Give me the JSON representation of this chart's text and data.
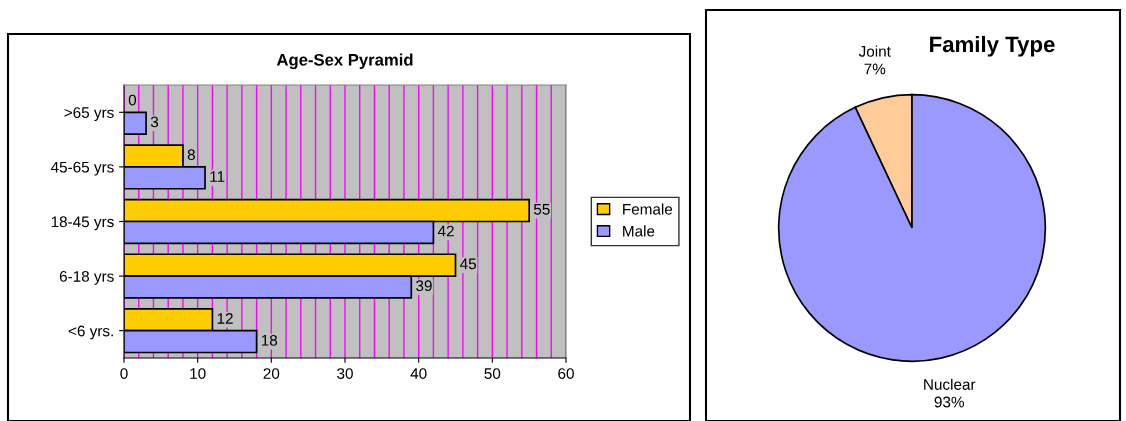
{
  "chart_data": [
    {
      "type": "bar",
      "orientation": "horizontal",
      "title": "Age-Sex Pyramid",
      "categories": [
        ">65 yrs",
        "45-65 yrs",
        "18-45 yrs",
        "6-18 yrs",
        "<6 yrs."
      ],
      "series": [
        {
          "name": "Female",
          "color": "#ffcc00",
          "values": [
            0,
            8,
            55,
            45,
            12
          ]
        },
        {
          "name": "Male",
          "color": "#9999ff",
          "values": [
            3,
            11,
            42,
            39,
            18
          ]
        }
      ],
      "xlim": [
        0,
        60
      ],
      "xticks": [
        0,
        10,
        20,
        30,
        40,
        50,
        60
      ],
      "grid": "x",
      "data_labels": true,
      "legend": "right"
    },
    {
      "type": "pie",
      "title": "Family Type",
      "categories": [
        "Joint",
        "Nuclear"
      ],
      "values": [
        7,
        93
      ],
      "colors": [
        "#ffcc99",
        "#9999ff"
      ],
      "value_labels": [
        "7%",
        "93%"
      ]
    }
  ]
}
